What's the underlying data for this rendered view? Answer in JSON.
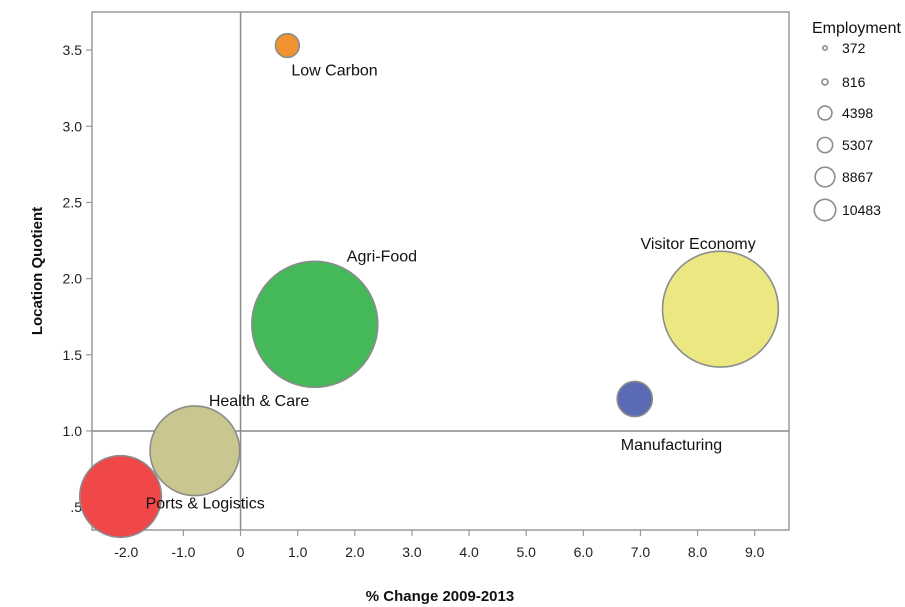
{
  "chart_data": {
    "type": "scatter",
    "title": "",
    "xlabel": "% Change 2009-2013",
    "ylabel": "Location Quotient",
    "xlim": [
      -2.6,
      9.6
    ],
    "ylim": [
      0.35,
      3.75
    ],
    "x_ticks": [
      -2.0,
      -1.0,
      0,
      1.0,
      2.0,
      3.0,
      4.0,
      5.0,
      6.0,
      7.0,
      8.0,
      9.0
    ],
    "x_tick_labels": [
      "-2.0",
      "-1.0",
      "0",
      "1.0",
      "2.0",
      "3.0",
      "4.0",
      "5.0",
      "6.0",
      "7.0",
      "8.0",
      "9.0"
    ],
    "y_ticks": [
      0.5,
      1.0,
      1.5,
      2.0,
      2.5,
      3.0,
      3.5
    ],
    "y_tick_labels": [
      ".5",
      "1.0",
      "1.5",
      "2.0",
      "2.5",
      "3.0",
      "3.5"
    ],
    "reference_lines": {
      "x": 0,
      "y": 1.0
    },
    "grid": false,
    "legend": {
      "title": "Employment",
      "placement": "top-right",
      "entries": [
        {
          "label": "372",
          "size": 372
        },
        {
          "label": "816",
          "size": 816
        },
        {
          "label": "4398",
          "size": 4398
        },
        {
          "label": "5307",
          "size": 5307
        },
        {
          "label": "8867",
          "size": 8867
        },
        {
          "label": "10483",
          "size": 10483
        }
      ]
    },
    "points": [
      {
        "label": "Low Carbon",
        "x": 0.82,
        "y": 3.53,
        "size": 372,
        "color": "#f0922f"
      },
      {
        "label": "Agri-Food",
        "x": 1.3,
        "y": 1.7,
        "size": 10483,
        "color": "#45b85a"
      },
      {
        "label": "Visitor Economy",
        "x": 8.4,
        "y": 1.8,
        "size": 8867,
        "color": "#ebe882"
      },
      {
        "label": "Manufacturing",
        "x": 6.9,
        "y": 1.21,
        "size": 816,
        "color": "#5a6ab5"
      },
      {
        "label": "Health & Care",
        "x": -0.8,
        "y": 0.87,
        "size": 5307,
        "color": "#c9c690"
      },
      {
        "label": "Ports & Logistics",
        "x": -2.1,
        "y": 0.57,
        "size": 4398,
        "color": "#f04848"
      }
    ]
  }
}
